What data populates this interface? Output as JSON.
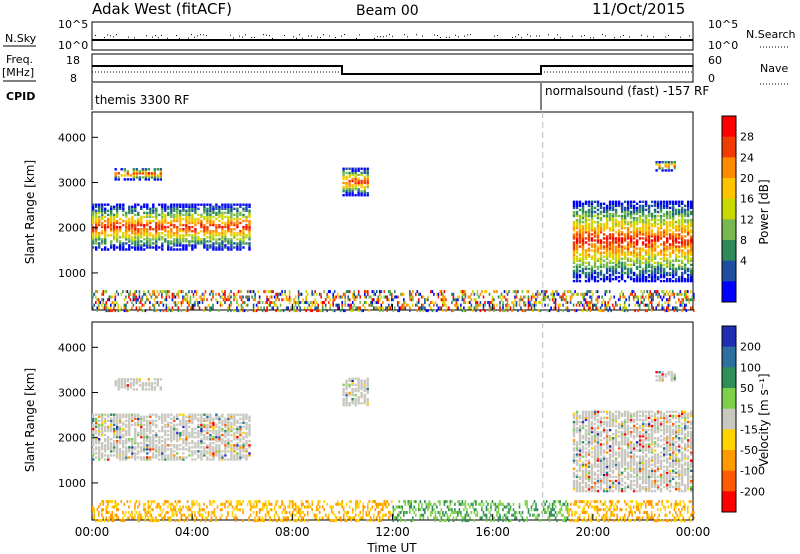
{
  "header": {
    "station": "Adak West (fitACF)",
    "beam": "Beam 00",
    "date": "11/Oct/2015"
  },
  "top_panels": {
    "nsky_label": "N.Sky",
    "nsearch_label": "N.Search",
    "nsky_ticks": [
      "10^5",
      "10^0"
    ],
    "nsky_right_ticks": [
      "10^5",
      "10^0"
    ],
    "freq_label": "Freq.",
    "freq_unit": "[MHz]",
    "freq_ticks": [
      "18",
      "8"
    ],
    "nave_label": "Nave",
    "nave_ticks": [
      "60",
      "0"
    ],
    "cpid_label": "CPID",
    "cpid_left": "themis 3300 RF",
    "cpid_right": "normalsound (fast) -157 RF"
  },
  "chart_data": [
    {
      "type": "heatmap",
      "panel": "power",
      "ylabel": "Slant Range [km]",
      "xlabel": "",
      "ylim": [
        180,
        4560
      ],
      "xlim": [
        0,
        24
      ],
      "yticks": [
        "4000",
        "3000",
        "2000",
        "1000"
      ],
      "xticks": [
        "00:00",
        "04:00",
        "08:00",
        "12:00",
        "16:00",
        "20:00",
        "00:00"
      ],
      "colorbar": {
        "label": "Power [dB]",
        "ticks": [
          "28",
          "24",
          "20",
          "16",
          "12",
          "8",
          "4"
        ],
        "colors": [
          "#ff0000",
          "#f03c00",
          "#ff8a00",
          "#ffc400",
          "#c8d800",
          "#78b850",
          "#2f8a5a",
          "#1e4fa0",
          "#0000ff"
        ]
      }
    },
    {
      "type": "heatmap",
      "panel": "velocity",
      "ylabel": "Slant Range [km]",
      "xlabel": "Time UT",
      "ylim": [
        180,
        4560
      ],
      "xlim": [
        0,
        24
      ],
      "yticks": [
        "4000",
        "3000",
        "2000",
        "1000"
      ],
      "xticks": [
        "00:00",
        "04:00",
        "08:00",
        "12:00",
        "16:00",
        "20:00",
        "00:00"
      ],
      "colorbar": {
        "label": "Velocity [m s⁻¹]",
        "ticks": [
          "200",
          "100",
          "50",
          "15",
          "-15",
          "-50",
          "-100",
          "-200"
        ],
        "colors": [
          "#1f2fb5",
          "#2d6f9e",
          "#2f8f57",
          "#7ed04a",
          "#c8c8c0",
          "#ffd200",
          "#ff9a00",
          "#ff5a00",
          "#ff0000"
        ]
      }
    }
  ],
  "echo_regions": [
    {
      "t0": 0.0,
      "t1": 6.3,
      "r0": 1500,
      "r1": 2500
    },
    {
      "t0": 0.9,
      "t1": 2.8,
      "r0": 3050,
      "r1": 3300
    },
    {
      "t0": 10.0,
      "t1": 11.0,
      "r0": 2700,
      "r1": 3300
    },
    {
      "t0": 19.2,
      "t1": 24.0,
      "r0": 800,
      "r1": 2600
    },
    {
      "t0": 22.5,
      "t1": 23.3,
      "r0": 3250,
      "r1": 3450
    }
  ],
  "scan_line_time": 18.0
}
